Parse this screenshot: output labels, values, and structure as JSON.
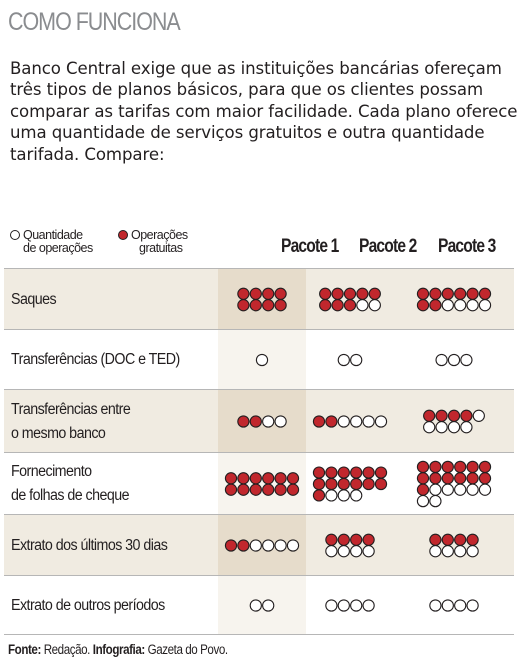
{
  "title": "COMO FUNCIONA",
  "intro": "Banco Central exige que as instituições bancárias ofereçam três tipos de planos básicos, para que os clientes possam comparar as tarifas com maior facilidade. Cada plano oferece uma quantidade de serviços gratuitos e outra quantidade tarifada. Compare:",
  "legend": {
    "operations_line1": "Quantidade",
    "operations_line2": "de operações",
    "free_line1": "Operações",
    "free_line2": "gratuitas"
  },
  "packages": [
    "Pacote 1",
    "Pacote 2",
    "Pacote 3"
  ],
  "colors": {
    "free": "#c1272d",
    "outline": "#231f20",
    "row_shade": "#f0ebe1",
    "title": "#8a8c8f"
  },
  "rows": [
    {
      "name": "Saques",
      "cells": [
        {
          "total": 8,
          "free": 8
        },
        {
          "total": 10,
          "free": 8
        },
        {
          "total": 12,
          "free": 8
        }
      ]
    },
    {
      "name": "Transferências (DOC e TED)",
      "cells": [
        {
          "total": 1,
          "free": 0
        },
        {
          "total": 2,
          "free": 0
        },
        {
          "total": 3,
          "free": 0
        }
      ]
    },
    {
      "name": "Transferências entre\no mesmo banco",
      "cells": [
        {
          "total": 4,
          "free": 2
        },
        {
          "total": 6,
          "free": 2
        },
        {
          "total": 9,
          "free": 4
        }
      ]
    },
    {
      "name": "Fornecimento\nde folhas de cheque",
      "cells": [
        {
          "total": 12,
          "free": 12
        },
        {
          "total": 16,
          "free": 13
        },
        {
          "total": 20,
          "free": 13
        }
      ]
    },
    {
      "name": "Extrato dos últimos 30 dias",
      "cells": [
        {
          "total": 6,
          "free": 2
        },
        {
          "total": 8,
          "free": 4
        },
        {
          "total": 8,
          "free": 4
        }
      ]
    },
    {
      "name": "Extrato de outros períodos",
      "cells": [
        {
          "total": 2,
          "free": 0
        },
        {
          "total": 4,
          "free": 0
        },
        {
          "total": 4,
          "free": 0
        }
      ]
    }
  ],
  "footer": {
    "source_label": "Fonte:",
    "source_value": "Redação.",
    "infographic_label": "Infografia:",
    "infographic_value": "Gazeta do Povo."
  }
}
